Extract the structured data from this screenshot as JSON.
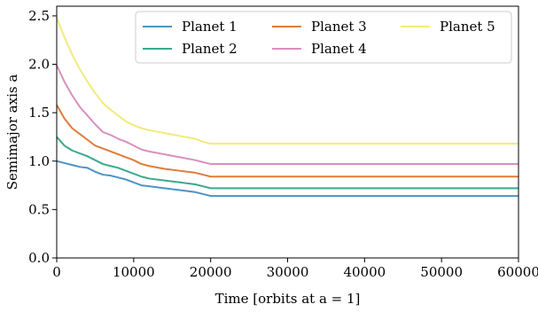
{
  "chart_data": {
    "type": "line",
    "xlabel": "Time [orbits at a = 1]",
    "ylabel": "Semimajor axis a",
    "xlim": [
      0,
      60000
    ],
    "ylim": [
      0.0,
      2.6
    ],
    "xticks": [
      0,
      10000,
      20000,
      30000,
      40000,
      50000,
      60000
    ],
    "yticks": [
      0.0,
      0.5,
      1.0,
      1.5,
      2.0,
      2.5
    ],
    "xtick_labels": [
      "0",
      "10000",
      "20000",
      "30000",
      "40000",
      "50000",
      "60000"
    ],
    "ytick_labels": [
      "0.0",
      "0.5",
      "1.0",
      "1.5",
      "2.0",
      "2.5"
    ],
    "grid": false,
    "legend": {
      "placement": "top-right",
      "columns": 3
    },
    "series": [
      {
        "name": "Planet 1",
        "color": "#4c94c4",
        "x": [
          0,
          1000,
          2000,
          3000,
          4000,
          5000,
          6000,
          7000,
          8000,
          9000,
          10000,
          11000,
          12000,
          14000,
          16000,
          18000,
          19000,
          20000,
          30000,
          40000,
          50000,
          60000
        ],
        "y": [
          1.0,
          0.98,
          0.96,
          0.94,
          0.93,
          0.89,
          0.86,
          0.85,
          0.83,
          0.81,
          0.78,
          0.75,
          0.74,
          0.72,
          0.7,
          0.68,
          0.66,
          0.64,
          0.64,
          0.64,
          0.64,
          0.64
        ]
      },
      {
        "name": "Planet 2",
        "color": "#3aa98c",
        "x": [
          0,
          1000,
          2000,
          3000,
          4000,
          5000,
          6000,
          7000,
          8000,
          9000,
          10000,
          11000,
          12000,
          14000,
          16000,
          18000,
          19000,
          20000,
          30000,
          40000,
          50000,
          60000
        ],
        "y": [
          1.25,
          1.16,
          1.11,
          1.08,
          1.05,
          1.01,
          0.97,
          0.95,
          0.93,
          0.9,
          0.87,
          0.84,
          0.82,
          0.8,
          0.78,
          0.76,
          0.74,
          0.72,
          0.72,
          0.72,
          0.72,
          0.72
        ]
      },
      {
        "name": "Planet 3",
        "color": "#e07b39",
        "x": [
          0,
          1000,
          2000,
          3000,
          4000,
          5000,
          6000,
          7000,
          8000,
          9000,
          10000,
          11000,
          12000,
          14000,
          16000,
          18000,
          19000,
          20000,
          30000,
          40000,
          50000,
          60000
        ],
        "y": [
          1.58,
          1.44,
          1.34,
          1.28,
          1.22,
          1.16,
          1.13,
          1.1,
          1.07,
          1.04,
          1.01,
          0.97,
          0.95,
          0.92,
          0.9,
          0.88,
          0.86,
          0.84,
          0.84,
          0.84,
          0.84,
          0.84
        ]
      },
      {
        "name": "Planet 4",
        "color": "#d98fc0",
        "x": [
          0,
          1000,
          2000,
          3000,
          4000,
          5000,
          6000,
          7000,
          8000,
          9000,
          10000,
          11000,
          12000,
          14000,
          16000,
          18000,
          19000,
          20000,
          30000,
          40000,
          50000,
          60000
        ],
        "y": [
          1.99,
          1.82,
          1.68,
          1.56,
          1.47,
          1.38,
          1.3,
          1.27,
          1.23,
          1.2,
          1.16,
          1.12,
          1.1,
          1.07,
          1.04,
          1.01,
          0.99,
          0.97,
          0.97,
          0.97,
          0.97,
          0.97
        ]
      },
      {
        "name": "Planet 5",
        "color": "#f2ea7a",
        "x": [
          0,
          1000,
          2000,
          3000,
          4000,
          5000,
          6000,
          7000,
          8000,
          9000,
          10000,
          11000,
          12000,
          14000,
          16000,
          18000,
          19000,
          20000,
          30000,
          40000,
          50000,
          60000
        ],
        "y": [
          2.48,
          2.28,
          2.1,
          1.95,
          1.82,
          1.7,
          1.6,
          1.53,
          1.47,
          1.41,
          1.37,
          1.34,
          1.32,
          1.29,
          1.26,
          1.23,
          1.2,
          1.18,
          1.18,
          1.18,
          1.18,
          1.18
        ]
      }
    ]
  }
}
